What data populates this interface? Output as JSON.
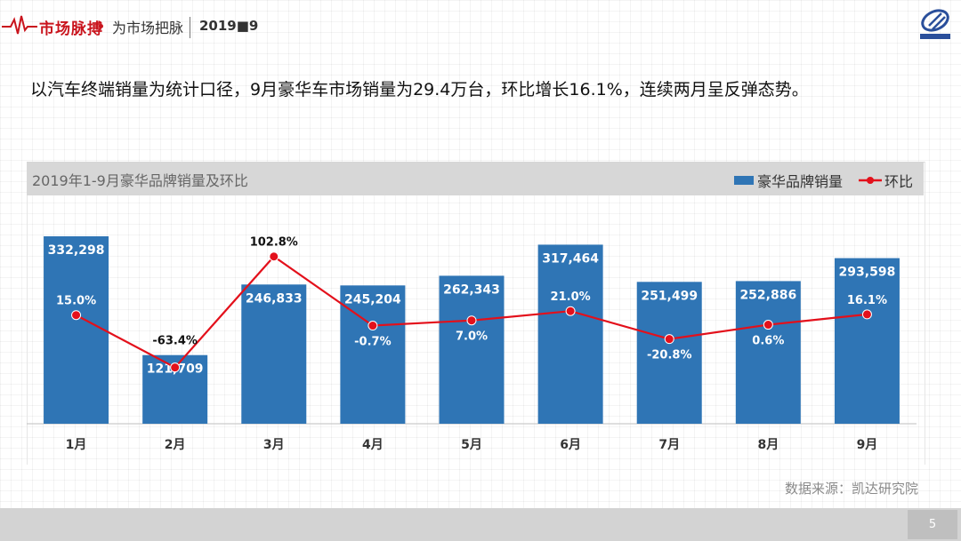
{
  "header": {
    "brand": "市场脉搏",
    "tagline": "为市场把脉",
    "issue": "2019■9"
  },
  "headline": "以汽车终端销量为统计口径，9月豪华车市场销量为29.4万台，环比增长16.1%，连续两月呈反弹态势。",
  "chart_data": {
    "type": "bar",
    "title": "2019年1-9月豪华品牌销量及环比",
    "categories": [
      "1月",
      "2月",
      "3月",
      "4月",
      "5月",
      "6月",
      "7月",
      "8月",
      "9月"
    ],
    "series": [
      {
        "name": "豪华品牌销量",
        "type": "bar",
        "color": "#2f75b5",
        "values": [
          332298,
          121709,
          246833,
          245204,
          262343,
          317464,
          251499,
          252886,
          293598
        ],
        "labels": [
          "332,298",
          "121,709",
          "246,833",
          "245,204",
          "262,343",
          "317,464",
          "251,499",
          "252,886",
          "293,598"
        ]
      },
      {
        "name": "环比",
        "type": "line",
        "color": "#e3101b",
        "values": [
          15.0,
          -63.4,
          102.8,
          -0.7,
          7.0,
          21.0,
          -20.8,
          0.6,
          16.1
        ],
        "labels": [
          "15.0%",
          "-63.4%",
          "102.8%",
          "-0.7%",
          "7.0%",
          "21.0%",
          "-20.8%",
          "0.6%",
          "16.1%"
        ]
      }
    ],
    "legend": "top-right",
    "grid": false
  },
  "source": "数据来源：凯达研究院",
  "page_number": "5"
}
